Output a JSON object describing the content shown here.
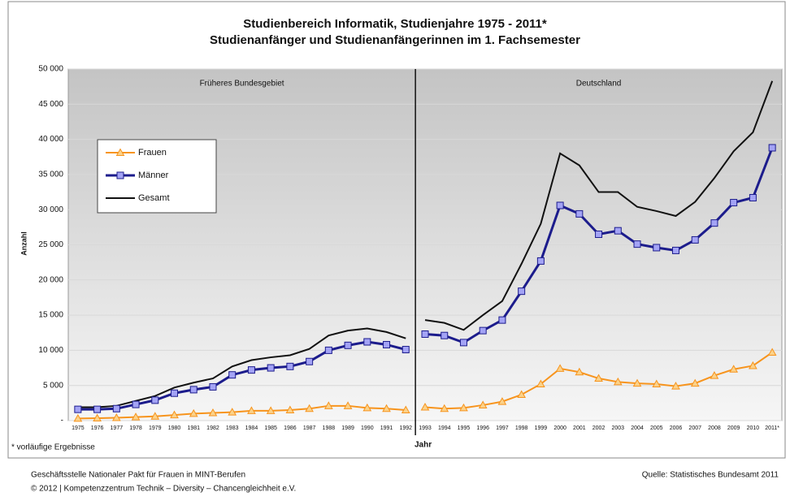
{
  "chart_data": {
    "type": "line",
    "title": "Studienbereich Informatik, Studienjahre 1975 - 2011*",
    "subtitle": "Studienanfänger und Studienanfängerinnen im 1. Fachsemester",
    "y_label": "Anzahl",
    "x_label": "Jahr",
    "note": "* vorläufige Ergebnisse",
    "categories": [
      "1975",
      "1976",
      "1977",
      "1978",
      "1979",
      "1980",
      "1981",
      "1982",
      "1983",
      "1984",
      "1985",
      "1986",
      "1987",
      "1988",
      "1989",
      "1990",
      "1991",
      "1992",
      "1993",
      "1994",
      "1995",
      "1996",
      "1997",
      "1998",
      "1999",
      "2000",
      "2001",
      "2002",
      "2003",
      "2004",
      "2005",
      "2006",
      "2007",
      "2008",
      "2009",
      "2010",
      "2011*"
    ],
    "regions": [
      {
        "label": "Früheres Bundesgebiet",
        "first": "1975",
        "last": "1992"
      },
      {
        "label": "Deutschland",
        "first": "1993",
        "last": "2011*"
      }
    ],
    "series": [
      {
        "name": "Frauen",
        "color": "#f7941d",
        "marker": "triangle",
        "values": [
          300,
          350,
          400,
          500,
          600,
          800,
          1000,
          1100,
          1200,
          1400,
          1400,
          1500,
          1700,
          2100,
          2100,
          1800,
          1700,
          1500,
          1900,
          1700,
          1800,
          2200,
          2700,
          3700,
          5200,
          7400,
          6900,
          6000,
          5500,
          5300,
          5200,
          4900,
          5300,
          6400,
          7300,
          7800,
          9700
        ]
      },
      {
        "name": "Männer",
        "color": "#1c1c8c",
        "marker": "square",
        "values": [
          1600,
          1600,
          1700,
          2300,
          2900,
          3900,
          4400,
          4800,
          6500,
          7200,
          7500,
          7700,
          8400,
          10000,
          10700,
          11200,
          10800,
          10100,
          12300,
          12100,
          11100,
          12800,
          14300,
          18400,
          22700,
          30600,
          29400,
          26500,
          27000,
          25100,
          24600,
          24200,
          25700,
          28100,
          31000,
          31700,
          38800
        ]
      },
      {
        "name": "Gesamt",
        "color": "#111111",
        "values": [
          1900,
          1900,
          2100,
          2800,
          3500,
          4700,
          5400,
          6000,
          7700,
          8600,
          9000,
          9300,
          10200,
          12100,
          12800,
          13100,
          12600,
          11700,
          14300,
          13900,
          12900,
          15000,
          17000,
          22300,
          28000,
          38000,
          36300,
          32500,
          32500,
          30400,
          29800,
          29100,
          31100,
          34500,
          38300,
          41000,
          48300
        ]
      }
    ],
    "ylim": [
      0,
      50000
    ],
    "yticks": [
      {
        "value": 0,
        "label": "-"
      },
      {
        "value": 5000,
        "label": "5 000"
      },
      {
        "value": 10000,
        "label": "10 000"
      },
      {
        "value": 15000,
        "label": "15 000"
      },
      {
        "value": 20000,
        "label": "20 000"
      },
      {
        "value": 25000,
        "label": "25 000"
      },
      {
        "value": 30000,
        "label": "30 000"
      },
      {
        "value": 35000,
        "label": "35 000"
      },
      {
        "value": 40000,
        "label": "40 000"
      },
      {
        "value": 45000,
        "label": "45 000"
      },
      {
        "value": 50000,
        "label": "50 000"
      }
    ],
    "grid": true,
    "legend": "upper left"
  },
  "footer": {
    "left": [
      "Geschäftsstelle Nationaler Pakt für Frauen in MINT-Berufen",
      "© 2012 | Kompetenzzentrum Technik – Diversity – Chancengleichheit e.V."
    ],
    "right": "Quelle: Statistisches Bundesamt 2011"
  }
}
